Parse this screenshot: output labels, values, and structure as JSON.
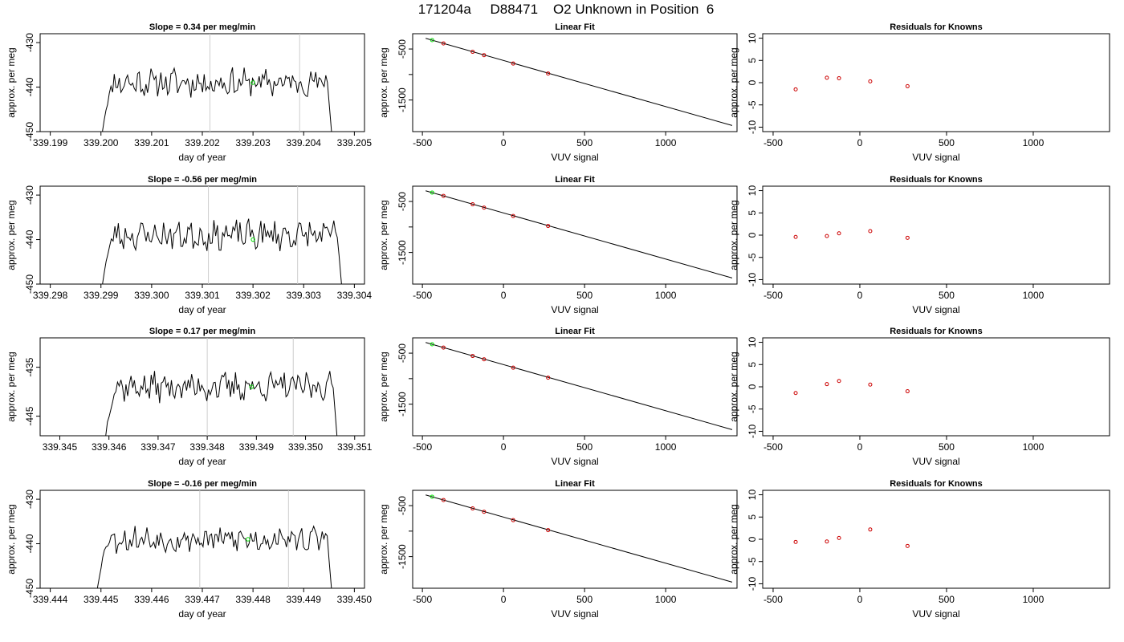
{
  "figure": {
    "title": "171204a     D88471    O2 Unknown in Position  6",
    "colors": {
      "line": "#000000",
      "highlight": "#00dd00",
      "residual": "#cc0000",
      "gridline": "#cccccc"
    }
  },
  "chart_data": [
    {
      "type": "line",
      "panel": "timeseries",
      "row": 1,
      "title": "Slope =  0.34  per meg/min",
      "xlabel": "day of year",
      "ylabel": "approx. per meg",
      "xlim": [
        339.1988,
        339.2052
      ],
      "ylim": [
        -450,
        -428
      ],
      "xticks": [
        339.199,
        339.2,
        339.201,
        339.202,
        339.203,
        339.204,
        339.205
      ],
      "xtick_labels": [
        "339.199",
        "339.200",
        "339.201",
        "339.202",
        "339.203",
        "339.204",
        "339.205"
      ],
      "yticks": [
        -450,
        -440,
        -430
      ],
      "ytick_labels": [
        "-450",
        "-440",
        "-430"
      ],
      "x_start": 339.2,
      "x_end": 339.2046,
      "baseline": -439,
      "noise_amp": 2.6,
      "seed": 11,
      "vlines": [
        339.20215,
        339.20392
      ],
      "marker": {
        "x": 339.203,
        "y": -439
      }
    },
    {
      "type": "line",
      "panel": "linear_fit",
      "row": 1,
      "title": "Linear Fit",
      "xlabel": "VUV signal",
      "ylabel": "approx. per meg",
      "xlim": [
        -560,
        1440
      ],
      "ylim": [
        -2120,
        -200
      ],
      "xticks": [
        -500,
        0,
        500,
        1000
      ],
      "xtick_labels": [
        "-500",
        "0",
        "500",
        "1000"
      ],
      "yticks": [
        -1500,
        -1000,
        -500
      ],
      "ytick_labels": [
        "-1500",
        "",
        "-500"
      ],
      "line": {
        "x": [
          -480,
          1410
        ],
        "y": [
          -290,
          -2000
        ]
      },
      "knowns": {
        "x": [
          -370,
          -190,
          -120,
          60,
          275
        ],
        "y": [
          -390,
          -555,
          -620,
          -785,
          -980
        ]
      },
      "unknown": {
        "x": -440,
        "y": -325
      }
    },
    {
      "type": "scatter",
      "panel": "residuals",
      "row": 1,
      "title": "Residuals for Knowns",
      "xlabel": "VUV signal",
      "ylabel": "approx. per meg",
      "xlim": [
        -560,
        1440
      ],
      "ylim": [
        -11,
        11
      ],
      "xticks": [
        -500,
        0,
        500,
        1000
      ],
      "xtick_labels": [
        "-500",
        "0",
        "500",
        "1000"
      ],
      "yticks": [
        -10,
        -5,
        0,
        5,
        10
      ],
      "ytick_labels": [
        "-10",
        "-5",
        "0",
        "5",
        "10"
      ],
      "x": [
        -370,
        -190,
        -120,
        60,
        275
      ],
      "y": [
        -1.5,
        1.1,
        1.0,
        0.3,
        -0.8
      ]
    },
    {
      "type": "line",
      "panel": "timeseries",
      "row": 2,
      "title": "Slope =  -0.56  per meg/min",
      "xlabel": "day of year",
      "ylabel": "approx. per meg",
      "xlim": [
        339.2978,
        339.3042
      ],
      "ylim": [
        -450,
        -428
      ],
      "xticks": [
        339.298,
        339.299,
        339.3,
        339.301,
        339.302,
        339.303,
        339.304
      ],
      "xtick_labels": [
        "339.298",
        "339.299",
        "339.300",
        "339.301",
        "339.302",
        "339.303",
        "339.304"
      ],
      "yticks": [
        -450,
        -440,
        -430
      ],
      "ytick_labels": [
        "-450",
        "-440",
        "-430"
      ],
      "x_start": 339.299,
      "x_end": 339.3038,
      "baseline": -439,
      "noise_amp": 2.8,
      "seed": 23,
      "vlines": [
        339.30112,
        339.30288
      ],
      "marker": {
        "x": 339.302,
        "y": -440
      }
    },
    {
      "type": "line",
      "panel": "linear_fit",
      "row": 2,
      "title": "Linear Fit",
      "xlabel": "VUV signal",
      "ylabel": "approx. per meg",
      "xlim": [
        -560,
        1440
      ],
      "ylim": [
        -2120,
        -200
      ],
      "xticks": [
        -500,
        0,
        500,
        1000
      ],
      "xtick_labels": [
        "-500",
        "0",
        "500",
        "1000"
      ],
      "yticks": [
        -1500,
        -1000,
        -500
      ],
      "ytick_labels": [
        "-1500",
        "",
        "-500"
      ],
      "line": {
        "x": [
          -480,
          1410
        ],
        "y": [
          -290,
          -2000
        ]
      },
      "knowns": {
        "x": [
          -370,
          -190,
          -120,
          60,
          275
        ],
        "y": [
          -390,
          -555,
          -620,
          -785,
          -980
        ]
      },
      "unknown": {
        "x": -440,
        "y": -325
      }
    },
    {
      "type": "scatter",
      "panel": "residuals",
      "row": 2,
      "title": "Residuals for Knowns",
      "xlabel": "VUV signal",
      "ylabel": "approx. per meg",
      "xlim": [
        -560,
        1440
      ],
      "ylim": [
        -11,
        11
      ],
      "xticks": [
        -500,
        0,
        500,
        1000
      ],
      "xtick_labels": [
        "-500",
        "0",
        "500",
        "1000"
      ],
      "yticks": [
        -10,
        -5,
        0,
        5,
        10
      ],
      "ytick_labels": [
        "-10",
        "-5",
        "0",
        "5",
        "10"
      ],
      "x": [
        -370,
        -190,
        -120,
        60,
        275
      ],
      "y": [
        -0.4,
        -0.2,
        0.4,
        0.9,
        -0.6
      ]
    },
    {
      "type": "line",
      "panel": "timeseries",
      "row": 3,
      "title": "Slope =  0.17  per meg/min",
      "xlabel": "day of year",
      "ylabel": "approx. per meg",
      "xlim": [
        339.3446,
        339.3512
      ],
      "ylim": [
        -449,
        -429
      ],
      "xticks": [
        339.345,
        339.346,
        339.347,
        339.348,
        339.349,
        339.35,
        339.351
      ],
      "xtick_labels": [
        "339.345",
        "339.346",
        "339.347",
        "339.348",
        "339.349",
        "339.350",
        "339.351"
      ],
      "yticks": [
        -445,
        -435
      ],
      "ytick_labels": [
        "-445",
        "-435"
      ],
      "x_start": 339.3459,
      "x_end": 339.3507,
      "baseline": -439,
      "noise_amp": 2.4,
      "seed": 37,
      "vlines": [
        339.348,
        339.34975
      ],
      "marker": {
        "x": 339.3489,
        "y": -439
      }
    },
    {
      "type": "line",
      "panel": "linear_fit",
      "row": 3,
      "title": "Linear Fit",
      "xlabel": "VUV signal",
      "ylabel": "approx. per meg",
      "xlim": [
        -560,
        1440
      ],
      "ylim": [
        -2120,
        -200
      ],
      "xticks": [
        -500,
        0,
        500,
        1000
      ],
      "xtick_labels": [
        "-500",
        "0",
        "500",
        "1000"
      ],
      "yticks": [
        -1500,
        -1000,
        -500
      ],
      "ytick_labels": [
        "-1500",
        "",
        "-500"
      ],
      "line": {
        "x": [
          -480,
          1410
        ],
        "y": [
          -290,
          -2000
        ]
      },
      "knowns": {
        "x": [
          -370,
          -190,
          -120,
          60,
          275
        ],
        "y": [
          -390,
          -555,
          -620,
          -785,
          -980
        ]
      },
      "unknown": {
        "x": -440,
        "y": -325
      }
    },
    {
      "type": "scatter",
      "panel": "residuals",
      "row": 3,
      "title": "Residuals for Knowns",
      "xlabel": "VUV signal",
      "ylabel": "approx. per meg",
      "xlim": [
        -560,
        1440
      ],
      "ylim": [
        -11,
        11
      ],
      "xticks": [
        -500,
        0,
        500,
        1000
      ],
      "xtick_labels": [
        "-500",
        "0",
        "500",
        "1000"
      ],
      "yticks": [
        -10,
        -5,
        0,
        5,
        10
      ],
      "ytick_labels": [
        "-10",
        "-5",
        "0",
        "5",
        "10"
      ],
      "x": [
        -370,
        -190,
        -120,
        60,
        275
      ],
      "y": [
        -1.4,
        0.6,
        1.3,
        0.5,
        -1.0
      ]
    },
    {
      "type": "line",
      "panel": "timeseries",
      "row": 4,
      "title": "Slope =  -0.16  per meg/min",
      "xlabel": "day of year",
      "ylabel": "approx. per meg",
      "xlim": [
        339.4438,
        339.4502
      ],
      "ylim": [
        -450,
        -428
      ],
      "xticks": [
        339.444,
        339.445,
        339.446,
        339.447,
        339.448,
        339.449,
        339.45
      ],
      "xtick_labels": [
        "339.444",
        "339.445",
        "339.446",
        "339.447",
        "339.448",
        "339.449",
        "339.450"
      ],
      "yticks": [
        -450,
        -440,
        -430
      ],
      "ytick_labels": [
        "-450",
        "-440",
        "-430"
      ],
      "x_start": 339.4449,
      "x_end": 339.4496,
      "baseline": -439,
      "noise_amp": 2.4,
      "seed": 53,
      "vlines": [
        339.44695,
        339.4487
      ],
      "marker": {
        "x": 339.4479,
        "y": -439
      }
    },
    {
      "type": "line",
      "panel": "linear_fit",
      "row": 4,
      "title": "Linear Fit",
      "xlabel": "VUV signal",
      "ylabel": "approx. per meg",
      "xlim": [
        -560,
        1440
      ],
      "ylim": [
        -2120,
        -200
      ],
      "xticks": [
        -500,
        0,
        500,
        1000
      ],
      "xtick_labels": [
        "-500",
        "0",
        "500",
        "1000"
      ],
      "yticks": [
        -1500,
        -1000,
        -500
      ],
      "ytick_labels": [
        "-1500",
        "",
        "-500"
      ],
      "line": {
        "x": [
          -480,
          1410
        ],
        "y": [
          -290,
          -2000
        ]
      },
      "knowns": {
        "x": [
          -370,
          -190,
          -120,
          60,
          275
        ],
        "y": [
          -390,
          -555,
          -620,
          -785,
          -980
        ]
      },
      "unknown": {
        "x": -440,
        "y": -325
      }
    },
    {
      "type": "scatter",
      "panel": "residuals",
      "row": 4,
      "title": "Residuals for Knowns",
      "xlabel": "VUV signal",
      "ylabel": "approx. per meg",
      "xlim": [
        -560,
        1440
      ],
      "ylim": [
        -11,
        11
      ],
      "xticks": [
        -500,
        0,
        500,
        1000
      ],
      "xtick_labels": [
        "-500",
        "0",
        "500",
        "1000"
      ],
      "yticks": [
        -10,
        -5,
        0,
        5,
        10
      ],
      "ytick_labels": [
        "-10",
        "-5",
        "0",
        "5",
        "10"
      ],
      "x": [
        -370,
        -190,
        -120,
        60,
        275
      ],
      "y": [
        -0.6,
        -0.5,
        0.3,
        2.2,
        -1.5
      ]
    }
  ]
}
